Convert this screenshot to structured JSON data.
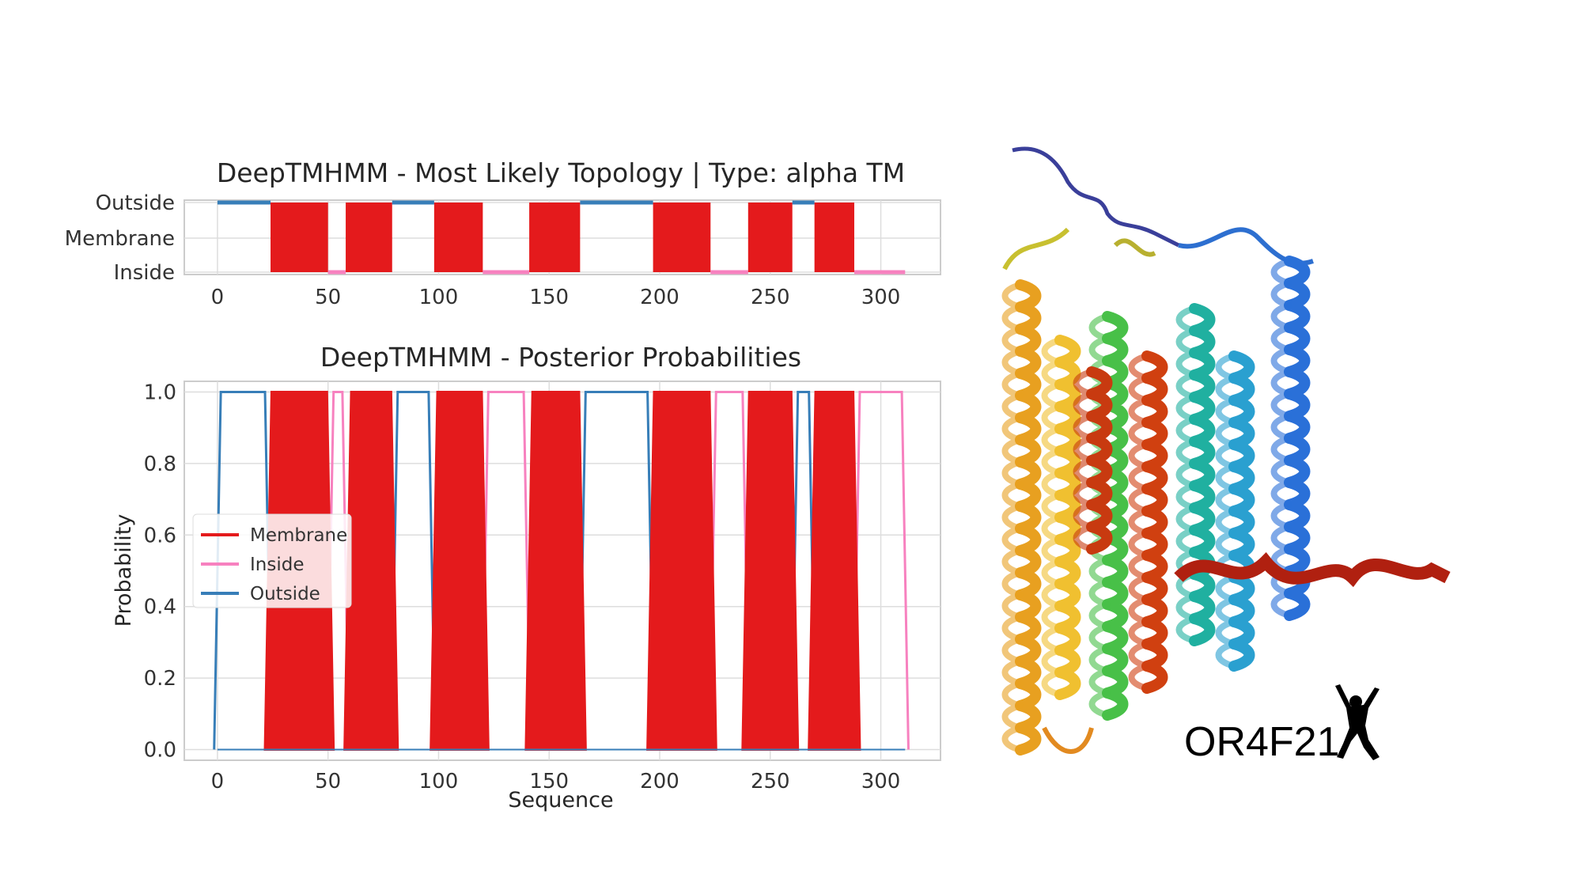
{
  "chart_data": [
    {
      "type": "topology",
      "title": "DeepTMHMM - Most Likely Topology | Type: alpha TM",
      "yticklabels": [
        "Inside",
        "Membrane",
        "Outside"
      ],
      "xticks": [
        0,
        50,
        100,
        150,
        200,
        250,
        300
      ],
      "xlim": [
        -15,
        327
      ],
      "grid": true,
      "sequence_length": 311,
      "segments": [
        {
          "region": "Outside",
          "start": 0,
          "end": 24
        },
        {
          "region": "Membrane",
          "start": 24,
          "end": 50
        },
        {
          "region": "Inside",
          "start": 50,
          "end": 58
        },
        {
          "region": "Membrane",
          "start": 58,
          "end": 79
        },
        {
          "region": "Outside",
          "start": 79,
          "end": 98
        },
        {
          "region": "Membrane",
          "start": 98,
          "end": 120
        },
        {
          "region": "Inside",
          "start": 120,
          "end": 141
        },
        {
          "region": "Membrane",
          "start": 141,
          "end": 164
        },
        {
          "region": "Outside",
          "start": 164,
          "end": 197
        },
        {
          "region": "Membrane",
          "start": 197,
          "end": 223
        },
        {
          "region": "Inside",
          "start": 223,
          "end": 240
        },
        {
          "region": "Membrane",
          "start": 240,
          "end": 260
        },
        {
          "region": "Outside",
          "start": 260,
          "end": 270
        },
        {
          "region": "Membrane",
          "start": 270,
          "end": 288
        },
        {
          "region": "Inside",
          "start": 288,
          "end": 311
        }
      ]
    },
    {
      "type": "area",
      "title": "DeepTMHMM - Posterior Probabilities",
      "xlabel": "Sequence",
      "ylabel": "Probability",
      "xticks": [
        0,
        50,
        100,
        150,
        200,
        250,
        300
      ],
      "yticks": [
        "0.0",
        "0.2",
        "0.4",
        "0.6",
        "0.8",
        "1.0"
      ],
      "xlim": [
        -15,
        327
      ],
      "ylim": [
        -0.03,
        1.03
      ],
      "grid": true,
      "legend_position": "center-left",
      "series": [
        {
          "name": "Membrane",
          "color": "#e41a1c",
          "segments": [
            [
              23,
              51
            ],
            [
              59,
              80
            ],
            [
              98,
              121
            ],
            [
              141,
              165
            ],
            [
              196,
              224
            ],
            [
              239,
              261
            ],
            [
              269,
              289
            ]
          ]
        },
        {
          "name": "Inside",
          "color": "#f781bf",
          "segments": [
            [
              51,
              58
            ],
            [
              121,
              140
            ],
            [
              224,
              239
            ],
            [
              289,
              311
            ]
          ]
        },
        {
          "name": "Outside",
          "color": "#377eb8",
          "segments": [
            [
              0,
              23
            ],
            [
              80,
              97
            ],
            [
              165,
              196
            ],
            [
              261,
              269
            ]
          ]
        }
      ]
    }
  ],
  "protein": {
    "name": "OR4F21",
    "mascot_icon": "dancing-figure-silhouette"
  }
}
